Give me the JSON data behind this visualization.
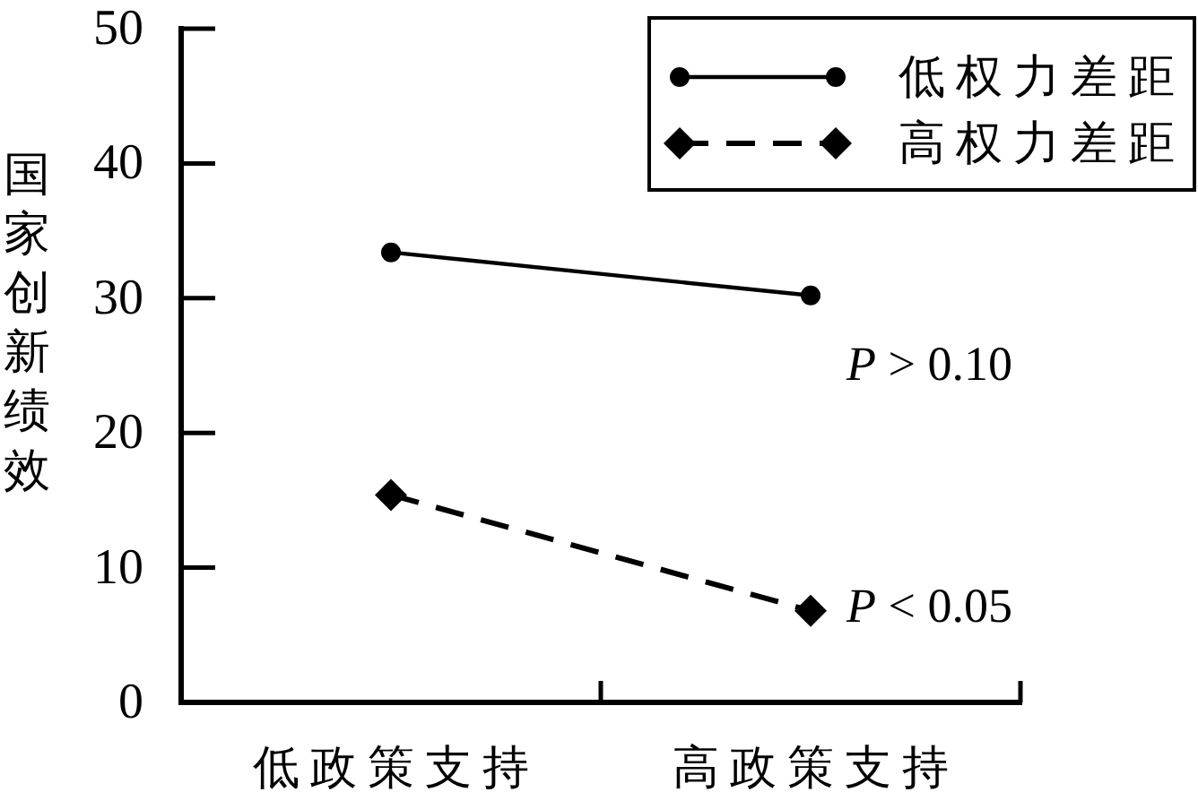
{
  "chart_data": {
    "type": "line",
    "ylabel": "国家创新绩效",
    "categories": [
      "低政策支持",
      "高政策支持"
    ],
    "series": [
      {
        "name": "低权力差距",
        "color": "#000000",
        "values": [
          33.4,
          30.2
        ],
        "marker": "circle",
        "line_style": "solid"
      },
      {
        "name": "高权力差距",
        "color": "#000000",
        "values": [
          15.4,
          6.8
        ],
        "marker": "diamond",
        "line_style": "dashed"
      }
    ],
    "ylim": [
      0,
      50
    ],
    "yticks": [
      0,
      10,
      20,
      30,
      40,
      50
    ],
    "legend": "top right",
    "annotations": [
      "P > 0.10",
      "P < 0.05"
    ]
  }
}
